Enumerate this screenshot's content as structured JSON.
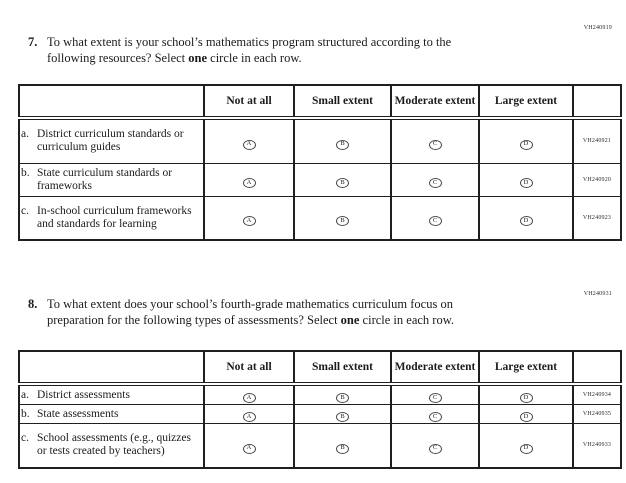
{
  "answer_letters": [
    "A",
    "B",
    "C",
    "D"
  ],
  "column_headers": [
    "Not at all",
    "Small extent",
    "Moderate extent",
    "Large extent"
  ],
  "questions": [
    {
      "number": "7.",
      "code": "VH240919",
      "text_line1": "To what extent is your school’s mathematics program structured according to the",
      "text_line2_before": "following resources? Select ",
      "bold_word": "one",
      "text_line2_after": " circle in each row.",
      "rows": [
        {
          "letter": "a.",
          "label": "District curriculum standards or curriculum guides",
          "code": "VH240921"
        },
        {
          "letter": "b.",
          "label": "State curriculum standards or frameworks",
          "code": "VH240920"
        },
        {
          "letter": "c.",
          "label": "In-school curriculum frameworks and standards for learning",
          "code": "VH240923"
        }
      ]
    },
    {
      "number": "8.",
      "code": "VH240931",
      "text_line1": "To what extent does your school’s fourth-grade mathematics curriculum focus on",
      "text_line2_before": "preparation for the following types of assessments? Select ",
      "bold_word": "one",
      "text_line2_after": " circle in each row.",
      "rows": [
        {
          "letter": "a.",
          "label": "District assessments",
          "code": "VH240934"
        },
        {
          "letter": "b.",
          "label": "State assessments",
          "code": "VH240935"
        },
        {
          "letter": "c.",
          "label": "School assessments (e.g., quizzes or tests created by teachers)",
          "code": "VH240933"
        }
      ]
    }
  ]
}
